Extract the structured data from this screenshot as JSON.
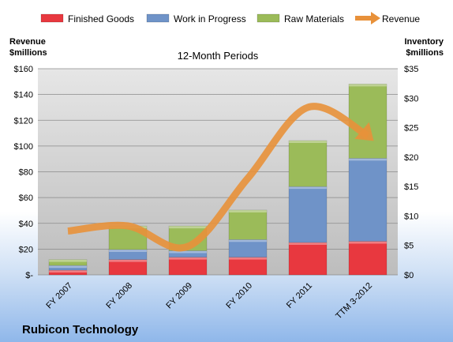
{
  "chart_data": {
    "type": "bar",
    "stacked": true,
    "subtitle": "12-Month Periods",
    "company": "Rubicon Technology",
    "y_left_label": [
      "Revenue",
      "$millions"
    ],
    "y_right_label": [
      "Inventory",
      "$millions"
    ],
    "categories": [
      "FY 2007",
      "FY 2008",
      "FY 2009",
      "FY 2010",
      "FY 2011",
      "TTM 3-2012"
    ],
    "ylim_left": [
      0,
      160
    ],
    "ylim_right": [
      0,
      35
    ],
    "left_ticks": [
      {
        "value": 0,
        "label": "$-"
      },
      {
        "value": 20,
        "label": "$20"
      },
      {
        "value": 40,
        "label": "$40"
      },
      {
        "value": 60,
        "label": "$60"
      },
      {
        "value": 80,
        "label": "$80"
      },
      {
        "value": 100,
        "label": "$100"
      },
      {
        "value": 120,
        "label": "$120"
      },
      {
        "value": 140,
        "label": "$140"
      },
      {
        "value": 160,
        "label": "$160"
      }
    ],
    "right_ticks": [
      {
        "value": 0,
        "label": "$0"
      },
      {
        "value": 5,
        "label": "$5"
      },
      {
        "value": 10,
        "label": "$10"
      },
      {
        "value": 15,
        "label": "$15"
      },
      {
        "value": 20,
        "label": "$20"
      },
      {
        "value": 25,
        "label": "$25"
      },
      {
        "value": 30,
        "label": "$30"
      },
      {
        "value": 35,
        "label": "$35"
      }
    ],
    "series": [
      {
        "name": "Finished Goods",
        "axis": "right",
        "color": "#e8383f",
        "values": [
          0.8,
          2.6,
          3.0,
          3.0,
          5.5,
          5.7
        ]
      },
      {
        "name": "Work in Progress",
        "axis": "right",
        "color": "#6f93c8",
        "values": [
          0.8,
          1.7,
          1.1,
          3.0,
          9.5,
          14.1
        ]
      },
      {
        "name": "Raw Materials",
        "axis": "right",
        "color": "#9bbb59",
        "values": [
          1.0,
          4.0,
          4.2,
          5.0,
          7.8,
          12.6
        ]
      },
      {
        "name": "Revenue",
        "axis": "left",
        "type": "line",
        "color": "#e8913a",
        "values": [
          34,
          38,
          22,
          75,
          130,
          108
        ]
      }
    ],
    "grid": true,
    "legend": "top"
  }
}
